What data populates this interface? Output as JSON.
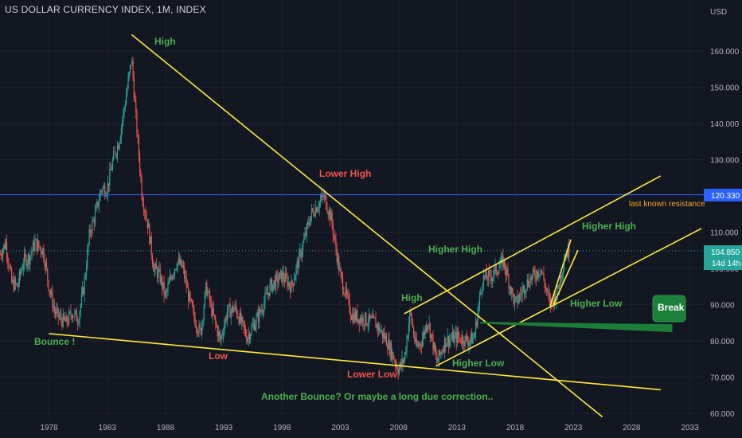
{
  "chart_data": {
    "type": "candlestick",
    "title": "US DOLLAR CURRENCY INDEX, 1M, INDEX",
    "y_unit": "USD",
    "x_ticks": [
      "1978",
      "1983",
      "1988",
      "1993",
      "1998",
      "2003",
      "2008",
      "2013",
      "2018",
      "2023",
      "2028",
      "2033"
    ],
    "y_ticks": [
      "60.000",
      "70.000",
      "80.000",
      "90.000",
      "100.000",
      "110.000",
      "120.000",
      "130.000",
      "140.000",
      "150.000",
      "160.000"
    ],
    "ylim": [
      59,
      170
    ],
    "xlim": [
      1973.8,
      2034.2
    ],
    "price_path": [
      [
        1973.8,
        104
      ],
      [
        1974.3,
        107
      ],
      [
        1974.8,
        96
      ],
      [
        1975.3,
        95
      ],
      [
        1975.8,
        102
      ],
      [
        1976.3,
        103
      ],
      [
        1976.8,
        107
      ],
      [
        1977.5,
        105
      ],
      [
        1978.0,
        95
      ],
      [
        1978.5,
        88
      ],
      [
        1979.0,
        86
      ],
      [
        1979.5,
        85
      ],
      [
        1980.0,
        88
      ],
      [
        1980.5,
        86
      ],
      [
        1981.0,
        95
      ],
      [
        1981.5,
        110
      ],
      [
        1982.0,
        115
      ],
      [
        1982.5,
        122
      ],
      [
        1983.0,
        122
      ],
      [
        1983.5,
        130
      ],
      [
        1984.0,
        135
      ],
      [
        1984.5,
        145
      ],
      [
        1985.1,
        158
      ],
      [
        1985.5,
        140
      ],
      [
        1986.0,
        120
      ],
      [
        1986.5,
        112
      ],
      [
        1987.0,
        100
      ],
      [
        1987.5,
        98
      ],
      [
        1988.0,
        92
      ],
      [
        1988.5,
        98
      ],
      [
        1989.0,
        102
      ],
      [
        1989.5,
        100
      ],
      [
        1990.0,
        92
      ],
      [
        1990.5,
        86
      ],
      [
        1991.0,
        82
      ],
      [
        1991.5,
        95
      ],
      [
        1992.0,
        88
      ],
      [
        1992.7,
        80
      ],
      [
        1993.3,
        88
      ],
      [
        1994.0,
        89
      ],
      [
        1995.0,
        81
      ],
      [
        1996.0,
        87
      ],
      [
        1997.0,
        95
      ],
      [
        1998.0,
        98
      ],
      [
        1998.8,
        95
      ],
      [
        1999.5,
        103
      ],
      [
        2000.5,
        115
      ],
      [
        2001.6,
        120
      ],
      [
        2002.2,
        114
      ],
      [
        2003.0,
        98
      ],
      [
        2004.0,
        87
      ],
      [
        2005.0,
        86
      ],
      [
        2006.0,
        85
      ],
      [
        2007.0,
        80
      ],
      [
        2008.0,
        72
      ],
      [
        2008.5,
        75
      ],
      [
        2009.0,
        88
      ],
      [
        2009.5,
        78
      ],
      [
        2010.0,
        80
      ],
      [
        2010.5,
        86
      ],
      [
        2011.3,
        74
      ],
      [
        2012.0,
        80
      ],
      [
        2013.0,
        81
      ],
      [
        2014.0,
        80
      ],
      [
        2014.5,
        81
      ],
      [
        2015.2,
        97
      ],
      [
        2016.0,
        98
      ],
      [
        2017.0,
        102
      ],
      [
        2018.0,
        90
      ],
      [
        2019.0,
        96
      ],
      [
        2020.2,
        100
      ],
      [
        2021.0,
        90
      ],
      [
        2021.6,
        93
      ],
      [
        2022.3,
        104
      ],
      [
        2022.7,
        105
      ]
    ],
    "current_price": "104.850",
    "countdown": "14d 14h",
    "resistance_price": "120.330",
    "annotations": {
      "high": "High",
      "lower_high": "Lower High",
      "higher_high_1": "Higher High",
      "higher_high_2": "Higher High",
      "high_2008": "High",
      "bounce": "Bounce !",
      "low": "Low",
      "lower_low": "Lower Low",
      "higher_low_1": "Higher Low",
      "higher_low_2": "Higher Low",
      "last_known_resistance": "last known resistance",
      "break": "Break",
      "footer": "Another Bounce? Or maybe a long due correction.."
    },
    "trendlines": [
      {
        "from": [
          1985.1,
          164.5
        ],
        "to": [
          2025.5,
          59
        ],
        "color": "#ffeb3b"
      },
      {
        "from": [
          1978.0,
          82
        ],
        "to": [
          2030.5,
          66.5
        ],
        "color": "#ffeb3b"
      },
      {
        "from": [
          2008.5,
          87.5
        ],
        "to": [
          2030.5,
          125.5
        ],
        "color": "#ffeb3b"
      },
      {
        "from": [
          2011.2,
          73
        ],
        "to": [
          2034.0,
          111
        ],
        "color": "#ffeb3b"
      },
      {
        "from": [
          2021.0,
          89.5
        ],
        "to": [
          2022.8,
          108
        ],
        "color": "#ffeb3b"
      },
      {
        "from": [
          2021.3,
          90
        ],
        "to": [
          2023.4,
          105
        ],
        "color": "#ffeb3b"
      }
    ],
    "resistance_line": {
      "value": 120.33,
      "color": "#2962ff"
    },
    "current_line": {
      "value": 104.85,
      "color": "#26a69a"
    },
    "break_arrow": {
      "from": [
        2015.0,
        85
      ],
      "to": [
        2031.5,
        83.5
      ],
      "color": "#1b7f3a"
    }
  }
}
